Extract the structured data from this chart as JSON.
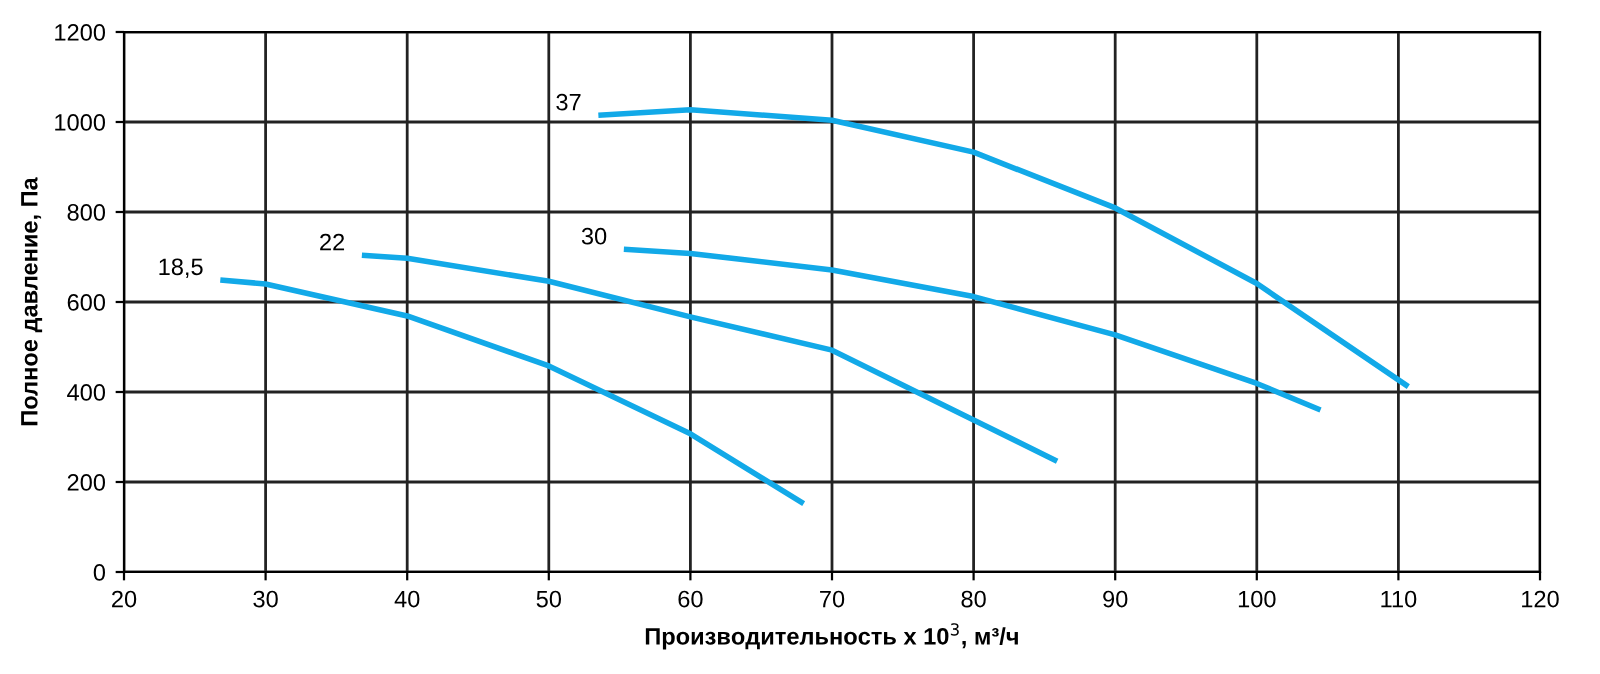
{
  "chart_data": {
    "type": "line",
    "xlabel": "Производительность x 10$^{3}$, м³/ч",
    "ylabel": "Полное давление, Па",
    "xlim": [
      20,
      120
    ],
    "xticks": [
      20,
      30,
      40,
      50,
      60,
      70,
      80,
      90,
      100,
      110,
      120
    ],
    "ylim": [
      0,
      1200
    ],
    "yticks": [
      0,
      200,
      400,
      600,
      800,
      1000,
      1200
    ],
    "grid": true,
    "legend": false,
    "marker": "none",
    "line_style": "solid",
    "series": [
      {
        "name": "18,5",
        "color": "#12a9e8",
        "x": [
          26.8,
          30,
          40,
          50,
          60,
          68.0
        ],
        "values": [
          649,
          640,
          569,
          458,
          307,
          152
        ]
      },
      {
        "name": "22",
        "color": "#12a9e8",
        "x": [
          36.8,
          40,
          50,
          60,
          70,
          80,
          85.9
        ],
        "values": [
          704,
          697,
          646,
          567,
          493,
          338,
          246
        ]
      },
      {
        "name": "30",
        "color": "#12a9e8",
        "x": [
          55.3,
          60,
          70,
          80,
          90,
          100,
          104.5
        ],
        "values": [
          717,
          708,
          671,
          612,
          527,
          419,
          360
        ]
      },
      {
        "name": "37",
        "color": "#12a9e8",
        "x": [
          53.5,
          60,
          70,
          80,
          90,
          100,
          110.7
        ],
        "values": [
          1015,
          1027,
          1004,
          933,
          809,
          641,
          412
        ]
      }
    ]
  }
}
